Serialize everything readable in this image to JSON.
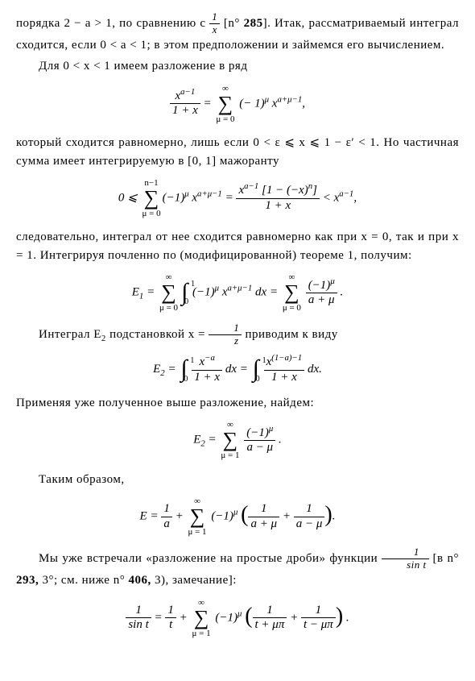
{
  "p1": "порядка 2 − a > 1, по сравнению с ",
  "p1b": " [n° ",
  "p1_ref": "285",
  "p1c": "]. Итак, рассматриваемый интеграл сходится, если 0 < a < 1; в этом предположении и зай­мемся его вычислением.",
  "p2": "Для 0 < x < 1 имеем разложение в ряд",
  "f1_lhs_num": "x",
  "f1_lhs_exp": "a−1",
  "f1_lhs_den": "1 + x",
  "f1_eq": " = ",
  "f1_sum_top": "∞",
  "f1_sum_bot": "μ = 0",
  "f1_rhs": " (− 1)",
  "f1_rhs_exp1": "μ",
  "f1_rhs2": " x",
  "f1_rhs_exp2": "a+μ−1",
  "f1_end": ",",
  "p3": "который сходится равномерно, лишь если 0 < ε ⩽ x ⩽ 1 − ε′ < 1. Но частичная сумма имеет интегрируемую в [0, 1] мажоранту",
  "f2_a": "0 ⩽ ",
  "f2_sum_top": "n−1",
  "f2_sum_bot": "μ = 0",
  "f2_b": "(−1)",
  "f2_b_exp": "μ",
  "f2_c": " x",
  "f2_c_exp": "a+μ−1",
  "f2_eq": " = ",
  "f2_num_a": "x",
  "f2_num_exp": "a−1",
  "f2_num_b": " [1 − (−x)",
  "f2_num_b_exp": "n",
  "f2_num_c": "]",
  "f2_den": "1 + x",
  "f2_lt": " < x",
  "f2_lt_exp": "a−1",
  "f2_end": ",",
  "p4": "следовательно, интеграл от нее сходится равномерно как при x = 0, так и при x = 1. Интегрируя почленно по (модифицированной) теореме 1, получим:",
  "f3_E": "E",
  "f3_sub1": "1",
  "f3_eq": " = ",
  "f3_sum1_top": "∞",
  "f3_sum1_bot": "μ = 0",
  "f3_int_top": "1",
  "f3_int_bot": "0",
  "f3_a": " (−1)",
  "f3_a_exp": "μ",
  "f3_b": " x",
  "f3_b_exp": "a+μ−1",
  "f3_dx": " dx = ",
  "f3_sum2_top": "∞",
  "f3_sum2_bot": "μ = 0",
  "f3_frac_num": "(−1)",
  "f3_frac_num_exp": "μ",
  "f3_frac_den": "a + μ",
  "f3_end": " .",
  "p5a": "Интеграл E",
  "p5a_sub": "2",
  "p5b": " подстановкой x = ",
  "p5c": " приводим к виду",
  "p5_frac_num": "1",
  "p5_frac_den": "z",
  "f4_E": "E",
  "f4_sub": "2",
  "f4_eq": " = ",
  "f4_int1_top": "1",
  "f4_int1_bot": "0",
  "f4_n1": "x",
  "f4_n1_exp": "−a",
  "f4_d1": "1 + x",
  "f4_dx1": " dx = ",
  "f4_int2_top": "1",
  "f4_int2_bot": "0",
  "f4_n2": "x",
  "f4_n2_exp": "(1−a)−1",
  "f4_d2": "1 + x",
  "f4_dx2": " dx.",
  "p6": "Применяя уже полученное выше разложение, найдем:",
  "f5_E": "E",
  "f5_sub": "2",
  "f5_eq": " = ",
  "f5_sum_top": "∞",
  "f5_sum_bot": "μ = 1",
  "f5_num": "(−1)",
  "f5_num_exp": "μ",
  "f5_den": "a − μ",
  "f5_end": " .",
  "p7": "Таким образом,",
  "f6_E": "E = ",
  "f6_f1n": "1",
  "f6_f1d": "a",
  "f6_plus": " + ",
  "f6_sum_top": "∞",
  "f6_sum_bot": "μ = 1",
  "f6_a": " (−1)",
  "f6_a_exp": "μ",
  "f6_sp": " ",
  "f6_f2n": "1",
  "f6_f2d": "a + μ",
  "f6_plus2": " + ",
  "f6_f3n": "1",
  "f6_f3d": "a − μ",
  "f6_end": ".",
  "p8a": "Мы уже встречали «разложение на простые дроби» функции ",
  "p8_fn": "1",
  "p8_fd": "sin t",
  "p8b": " [в n° ",
  "p8_ref1": "293,",
  "p8c": " 3°; см. ниже n° ",
  "p8_ref2": "406,",
  "p8d": " 3), замечание]:",
  "f7_ln": "1",
  "f7_ld": "sin t",
  "f7_eq": " = ",
  "f7_f1n": "1",
  "f7_f1d": "t",
  "f7_plus": " + ",
  "f7_sum_top": "∞",
  "f7_sum_bot": "μ = 1",
  "f7_a": " (−1)",
  "f7_a_exp": "μ",
  "f7_sp": " ",
  "f7_f2n": "1",
  "f7_f2d": "t + μπ",
  "f7_plus2": " + ",
  "f7_f3n": "1",
  "f7_f3d": "t − μπ",
  "f7_end": " .",
  "frac1x_n": "1",
  "frac1x_d": "x"
}
